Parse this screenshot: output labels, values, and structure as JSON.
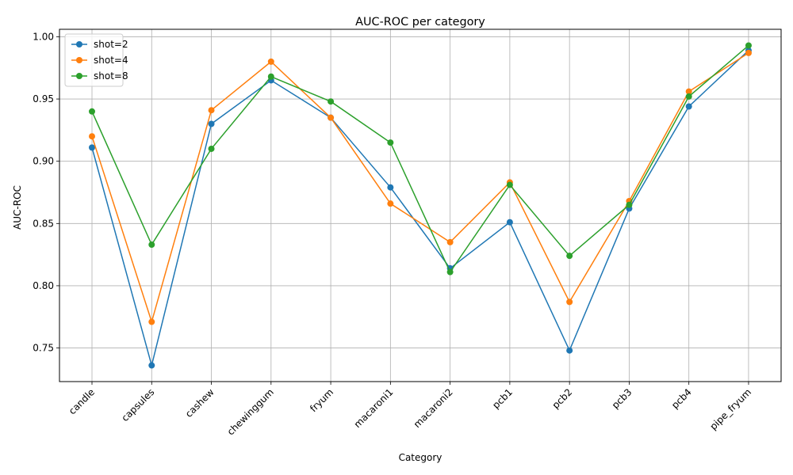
{
  "chart_data": {
    "type": "line",
    "title": "AUC-ROC per category",
    "xlabel": "Category",
    "ylabel": "AUC-ROC",
    "ylim": [
      0.723,
      1.006
    ],
    "yticks": [
      0.75,
      0.8,
      0.85,
      0.9,
      0.95,
      1.0
    ],
    "grid": true,
    "legend_position": "top-left",
    "categories": [
      "candle",
      "capsules",
      "cashew",
      "chewinggum",
      "fryum",
      "macaroni1",
      "macaroni2",
      "pcb1",
      "pcb2",
      "pcb3",
      "pcb4",
      "pipe_fryum"
    ],
    "series": [
      {
        "name": "shot=2",
        "color": "#1f77b4",
        "values": [
          0.911,
          0.736,
          0.93,
          0.965,
          0.935,
          0.879,
          0.814,
          0.851,
          0.748,
          0.862,
          0.944,
          0.989
        ]
      },
      {
        "name": "shot=4",
        "color": "#ff7f0e",
        "values": [
          0.92,
          0.771,
          0.941,
          0.98,
          0.935,
          0.866,
          0.835,
          0.883,
          0.787,
          0.868,
          0.956,
          0.987
        ]
      },
      {
        "name": "shot=8",
        "color": "#2ca02c",
        "values": [
          0.94,
          0.833,
          0.91,
          0.968,
          0.948,
          0.915,
          0.811,
          0.881,
          0.824,
          0.865,
          0.952,
          0.993
        ]
      }
    ]
  }
}
